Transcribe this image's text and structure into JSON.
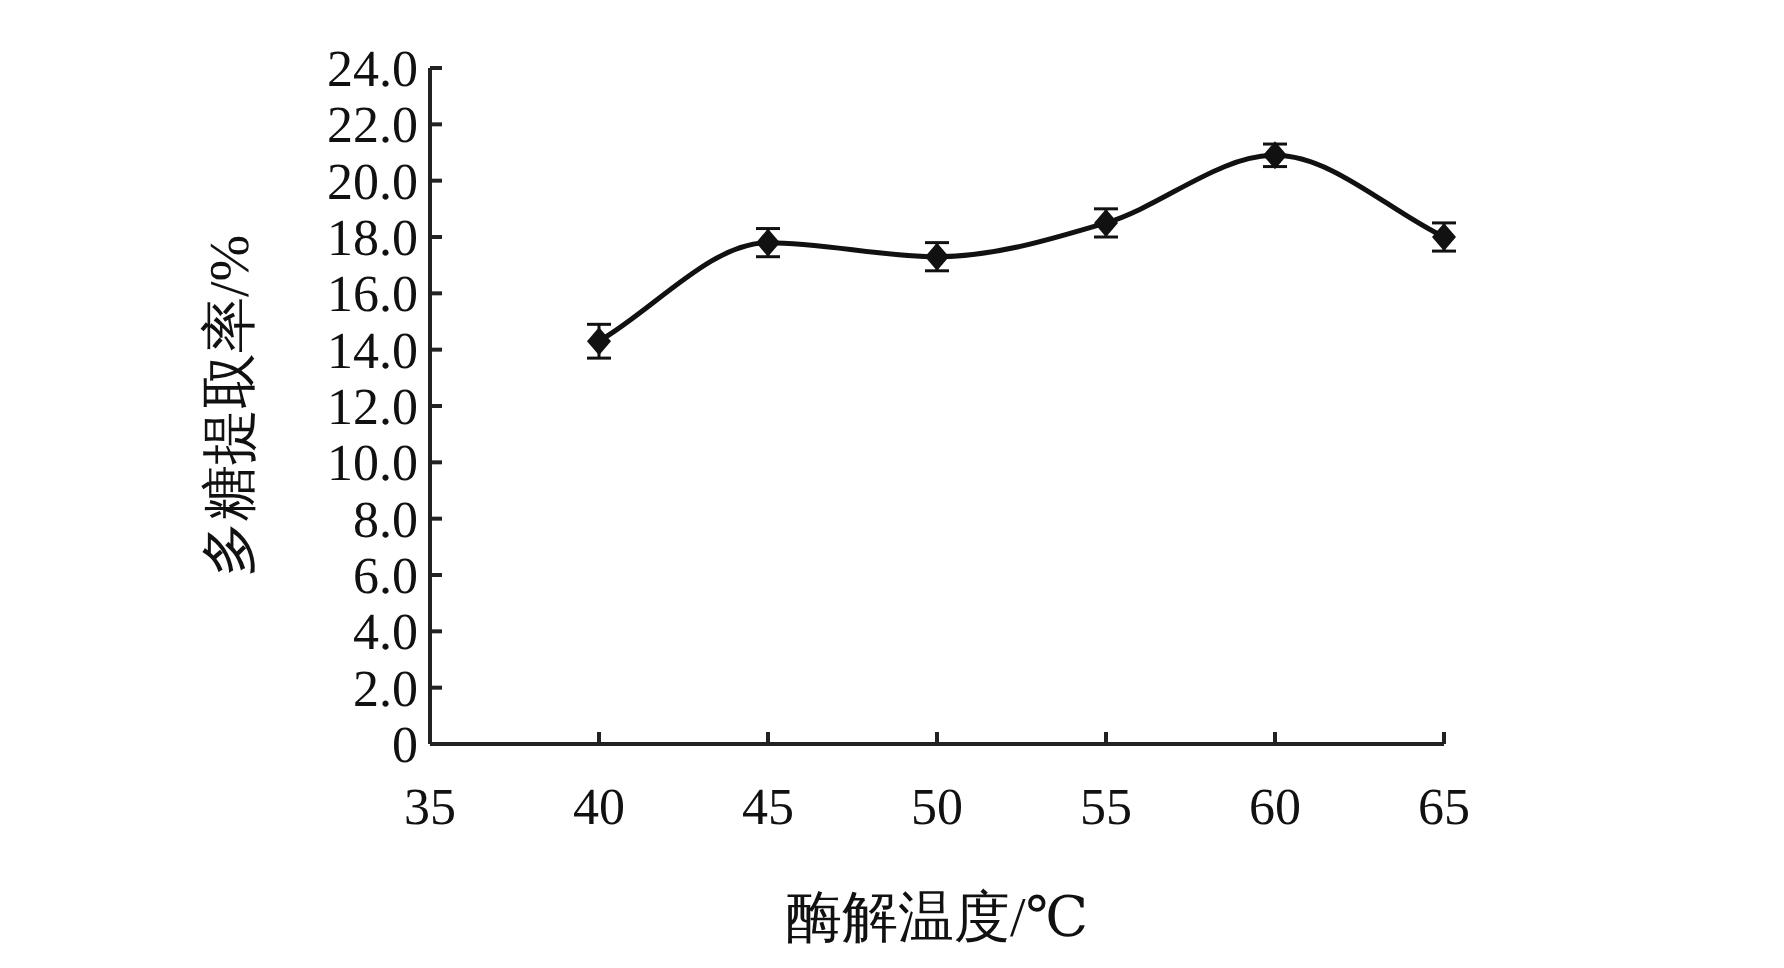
{
  "chart_data": {
    "type": "line",
    "xlabel": "酶解温度/℃",
    "ylabel": "多糖提取率/%",
    "x": [
      40,
      45,
      50,
      55,
      60,
      65
    ],
    "series": [
      {
        "color": "#111111",
        "values": [
          14.3,
          17.8,
          17.3,
          18.5,
          20.9,
          18.0
        ],
        "errors": [
          0.6,
          0.5,
          0.5,
          0.5,
          0.4,
          0.5
        ]
      }
    ],
    "marker": "diamond",
    "line_style": "solid",
    "xlim": [
      35,
      65
    ],
    "xticks": [
      35,
      40,
      45,
      50,
      55,
      60,
      65
    ],
    "ylim": [
      0,
      24
    ],
    "yticks": [
      0,
      {
        "value": 2,
        "label": "2.0"
      },
      {
        "value": 4,
        "label": "4.0"
      },
      {
        "value": 6,
        "label": "6.0"
      },
      {
        "value": 8,
        "label": "8.0"
      },
      {
        "value": 10,
        "label": "10.0"
      },
      {
        "value": 12,
        "label": "12.0"
      },
      {
        "value": 14,
        "label": "14.0"
      },
      {
        "value": 16,
        "label": "16.0"
      },
      {
        "value": 18,
        "label": "18.0"
      },
      {
        "value": 20,
        "label": "20.0"
      },
      {
        "value": 22,
        "label": "22.0"
      },
      {
        "value": 24,
        "label": "24.0"
      }
    ]
  }
}
